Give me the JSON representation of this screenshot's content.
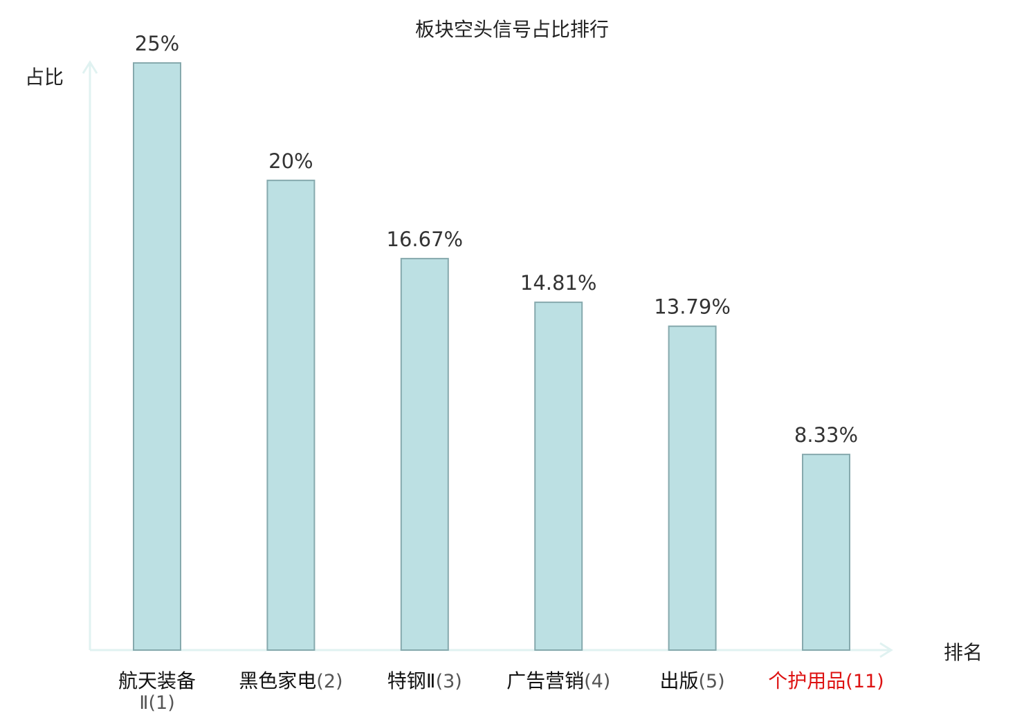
{
  "colors": {
    "bar_fill": "#bce0e3",
    "bar_stroke": "#86a9ad",
    "axis": "#e0f2f1",
    "text": "#333333",
    "highlight": "#dd1111"
  },
  "chart_data": {
    "type": "bar",
    "title": "板块空头信号占比排行",
    "ylabel": "占比",
    "xlabel": "排名",
    "ylim": [
      0,
      25
    ],
    "grid": false,
    "categories": [
      "航天装备Ⅱ(1)",
      "黑色家电(2)",
      "特钢Ⅱ(3)",
      "广告营销(4)",
      "出版(5)",
      "个护用品(11)"
    ],
    "category_names": [
      "航天装备",
      "黑色家电",
      "特钢Ⅱ",
      "广告营销",
      "出版",
      "个护用品"
    ],
    "category_ranks": [
      "Ⅱ(1)",
      "(2)",
      "(3)",
      "(4)",
      "(5)",
      "(11)"
    ],
    "values": [
      25,
      20,
      16.67,
      14.81,
      13.79,
      8.33
    ],
    "value_labels": [
      "25%",
      "20%",
      "16.67%",
      "14.81%",
      "13.79%",
      "8.33%"
    ],
    "highlight_index": 5
  }
}
